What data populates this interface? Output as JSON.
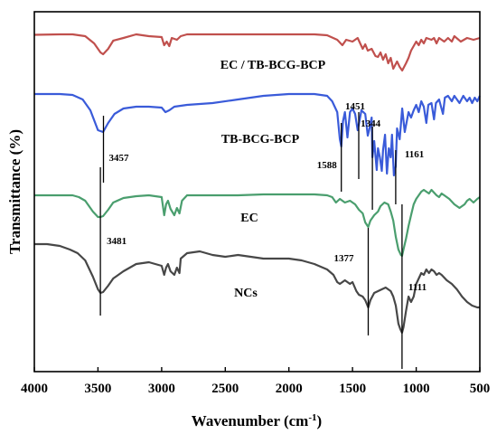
{
  "chart_data": {
    "type": "line",
    "title": "",
    "xlabel": "Wavenumber (cm",
    "xlabel_sup": "-1",
    "xlabel_close": ")",
    "ylabel": "Transmittance (%)",
    "xlim": [
      4000,
      500
    ],
    "x_reversed": true,
    "y_ticks_shown": false,
    "grid": false,
    "legend": "none (series labelled inline)",
    "x_ticks": [
      "4000",
      "3500",
      "3000",
      "2500",
      "2000",
      "1500",
      "1000",
      "500"
    ],
    "series": [
      {
        "name": "EC / TB-BCG-BCP",
        "color": "#c0504d",
        "points": [
          [
            4000,
            0.5
          ],
          [
            3800,
            0
          ],
          [
            3700,
            0
          ],
          [
            3600,
            2
          ],
          [
            3530,
            10
          ],
          [
            3480,
            20
          ],
          [
            3460,
            22
          ],
          [
            3420,
            16
          ],
          [
            3380,
            7
          ],
          [
            3300,
            4
          ],
          [
            3200,
            0
          ],
          [
            3100,
            2
          ],
          [
            3000,
            3
          ],
          [
            2980,
            12
          ],
          [
            2960,
            8
          ],
          [
            2940,
            13
          ],
          [
            2920,
            4
          ],
          [
            2880,
            6
          ],
          [
            2850,
            2
          ],
          [
            2800,
            0
          ],
          [
            2600,
            0
          ],
          [
            2400,
            0
          ],
          [
            2200,
            0
          ],
          [
            2000,
            0
          ],
          [
            1800,
            0
          ],
          [
            1700,
            1
          ],
          [
            1620,
            6
          ],
          [
            1580,
            12
          ],
          [
            1550,
            6
          ],
          [
            1500,
            8
          ],
          [
            1460,
            4
          ],
          [
            1420,
            16
          ],
          [
            1400,
            11
          ],
          [
            1380,
            18
          ],
          [
            1350,
            16
          ],
          [
            1320,
            24
          ],
          [
            1300,
            25
          ],
          [
            1280,
            20
          ],
          [
            1260,
            28
          ],
          [
            1240,
            22
          ],
          [
            1220,
            32
          ],
          [
            1200,
            26
          ],
          [
            1180,
            38
          ],
          [
            1150,
            30
          ],
          [
            1130,
            36
          ],
          [
            1110,
            40
          ],
          [
            1080,
            32
          ],
          [
            1060,
            26
          ],
          [
            1040,
            18
          ],
          [
            1000,
            8
          ],
          [
            980,
            12
          ],
          [
            960,
            6
          ],
          [
            940,
            10
          ],
          [
            920,
            4
          ],
          [
            880,
            6
          ],
          [
            860,
            4
          ],
          [
            840,
            10
          ],
          [
            820,
            4
          ],
          [
            780,
            8
          ],
          [
            750,
            4
          ],
          [
            720,
            8
          ],
          [
            700,
            2
          ],
          [
            650,
            8
          ],
          [
            600,
            4
          ],
          [
            550,
            6
          ],
          [
            500,
            4
          ]
        ]
      },
      {
        "name": "TB-BCG-BCP",
        "color": "#3a5bd9",
        "points": [
          [
            4000,
            0
          ],
          [
            3800,
            0
          ],
          [
            3700,
            1
          ],
          [
            3620,
            6
          ],
          [
            3560,
            18
          ],
          [
            3500,
            40
          ],
          [
            3460,
            42
          ],
          [
            3420,
            32
          ],
          [
            3370,
            22
          ],
          [
            3300,
            16
          ],
          [
            3200,
            14
          ],
          [
            3100,
            14
          ],
          [
            3000,
            15
          ],
          [
            2970,
            20
          ],
          [
            2940,
            18
          ],
          [
            2900,
            14
          ],
          [
            2800,
            12
          ],
          [
            2600,
            10
          ],
          [
            2400,
            6
          ],
          [
            2200,
            2
          ],
          [
            2000,
            0
          ],
          [
            1800,
            0
          ],
          [
            1700,
            2
          ],
          [
            1660,
            8
          ],
          [
            1620,
            20
          ],
          [
            1600,
            50
          ],
          [
            1588,
            58
          ],
          [
            1575,
            30
          ],
          [
            1560,
            20
          ],
          [
            1540,
            48
          ],
          [
            1520,
            20
          ],
          [
            1500,
            16
          ],
          [
            1480,
            22
          ],
          [
            1460,
            40
          ],
          [
            1451,
            34
          ],
          [
            1430,
            18
          ],
          [
            1400,
            22
          ],
          [
            1380,
            46
          ],
          [
            1370,
            40
          ],
          [
            1350,
            26
          ],
          [
            1344,
            70
          ],
          [
            1330,
            52
          ],
          [
            1310,
            84
          ],
          [
            1300,
            60
          ],
          [
            1285,
            70
          ],
          [
            1270,
            85
          ],
          [
            1260,
            62
          ],
          [
            1245,
            45
          ],
          [
            1230,
            88
          ],
          [
            1215,
            60
          ],
          [
            1200,
            70
          ],
          [
            1190,
            45
          ],
          [
            1175,
            90
          ],
          [
            1161,
            80
          ],
          [
            1150,
            38
          ],
          [
            1130,
            50
          ],
          [
            1110,
            16
          ],
          [
            1090,
            42
          ],
          [
            1060,
            20
          ],
          [
            1040,
            26
          ],
          [
            1020,
            18
          ],
          [
            1000,
            12
          ],
          [
            980,
            20
          ],
          [
            960,
            8
          ],
          [
            940,
            14
          ],
          [
            920,
            32
          ],
          [
            905,
            12
          ],
          [
            880,
            10
          ],
          [
            860,
            28
          ],
          [
            845,
            10
          ],
          [
            820,
            6
          ],
          [
            790,
            22
          ],
          [
            775,
            4
          ],
          [
            750,
            2
          ],
          [
            720,
            8
          ],
          [
            700,
            2
          ],
          [
            660,
            10
          ],
          [
            630,
            2
          ],
          [
            600,
            8
          ],
          [
            580,
            4
          ],
          [
            560,
            10
          ],
          [
            540,
            4
          ],
          [
            520,
            8
          ],
          [
            500,
            2
          ]
        ]
      },
      {
        "name": "EC",
        "color": "#4a9e6e",
        "points": [
          [
            4000,
            0
          ],
          [
            3800,
            0
          ],
          [
            3700,
            0
          ],
          [
            3650,
            2
          ],
          [
            3600,
            6
          ],
          [
            3540,
            18
          ],
          [
            3500,
            24
          ],
          [
            3480,
            24
          ],
          [
            3460,
            23
          ],
          [
            3420,
            16
          ],
          [
            3380,
            8
          ],
          [
            3300,
            3
          ],
          [
            3200,
            1
          ],
          [
            3100,
            0
          ],
          [
            3000,
            2
          ],
          [
            2980,
            22
          ],
          [
            2965,
            10
          ],
          [
            2950,
            6
          ],
          [
            2930,
            15
          ],
          [
            2900,
            22
          ],
          [
            2880,
            14
          ],
          [
            2860,
            20
          ],
          [
            2840,
            6
          ],
          [
            2800,
            0
          ],
          [
            2600,
            0
          ],
          [
            2400,
            0
          ],
          [
            2200,
            -1
          ],
          [
            2000,
            -1
          ],
          [
            1800,
            -1
          ],
          [
            1700,
            0
          ],
          [
            1660,
            2
          ],
          [
            1630,
            8
          ],
          [
            1600,
            4
          ],
          [
            1560,
            8
          ],
          [
            1520,
            6
          ],
          [
            1480,
            10
          ],
          [
            1450,
            16
          ],
          [
            1420,
            20
          ],
          [
            1400,
            30
          ],
          [
            1377,
            35
          ],
          [
            1360,
            28
          ],
          [
            1330,
            22
          ],
          [
            1300,
            18
          ],
          [
            1280,
            12
          ],
          [
            1250,
            8
          ],
          [
            1220,
            10
          ],
          [
            1200,
            18
          ],
          [
            1180,
            28
          ],
          [
            1160,
            46
          ],
          [
            1140,
            60
          ],
          [
            1120,
            66
          ],
          [
            1111,
            67
          ],
          [
            1100,
            60
          ],
          [
            1080,
            48
          ],
          [
            1060,
            34
          ],
          [
            1040,
            22
          ],
          [
            1020,
            10
          ],
          [
            1000,
            4
          ],
          [
            980,
            0
          ],
          [
            960,
            -4
          ],
          [
            940,
            -6
          ],
          [
            920,
            -4
          ],
          [
            900,
            -2
          ],
          [
            880,
            -6
          ],
          [
            860,
            -3
          ],
          [
            840,
            0
          ],
          [
            820,
            2
          ],
          [
            800,
            -2
          ],
          [
            780,
            0
          ],
          [
            760,
            2
          ],
          [
            740,
            4
          ],
          [
            700,
            10
          ],
          [
            660,
            14
          ],
          [
            620,
            10
          ],
          [
            600,
            6
          ],
          [
            580,
            4
          ],
          [
            550,
            8
          ],
          [
            520,
            4
          ],
          [
            500,
            2
          ]
        ]
      },
      {
        "name": "NCs",
        "color": "#474747",
        "points": [
          [
            4000,
            4
          ],
          [
            3900,
            4
          ],
          [
            3800,
            6
          ],
          [
            3720,
            10
          ],
          [
            3660,
            14
          ],
          [
            3600,
            22
          ],
          [
            3540,
            40
          ],
          [
            3500,
            54
          ],
          [
            3480,
            58
          ],
          [
            3460,
            57
          ],
          [
            3420,
            50
          ],
          [
            3380,
            42
          ],
          [
            3300,
            34
          ],
          [
            3200,
            26
          ],
          [
            3100,
            24
          ],
          [
            3050,
            26
          ],
          [
            3000,
            28
          ],
          [
            2980,
            38
          ],
          [
            2965,
            30
          ],
          [
            2950,
            26
          ],
          [
            2930,
            34
          ],
          [
            2900,
            38
          ],
          [
            2880,
            30
          ],
          [
            2860,
            36
          ],
          [
            2850,
            20
          ],
          [
            2800,
            14
          ],
          [
            2700,
            12
          ],
          [
            2600,
            16
          ],
          [
            2500,
            18
          ],
          [
            2400,
            16
          ],
          [
            2300,
            18
          ],
          [
            2200,
            20
          ],
          [
            2100,
            20
          ],
          [
            2000,
            20
          ],
          [
            1900,
            22
          ],
          [
            1800,
            26
          ],
          [
            1700,
            32
          ],
          [
            1650,
            38
          ],
          [
            1620,
            46
          ],
          [
            1600,
            48
          ],
          [
            1560,
            44
          ],
          [
            1520,
            48
          ],
          [
            1500,
            46
          ],
          [
            1470,
            56
          ],
          [
            1450,
            60
          ],
          [
            1420,
            62
          ],
          [
            1400,
            66
          ],
          [
            1377,
            74
          ],
          [
            1360,
            66
          ],
          [
            1330,
            58
          ],
          [
            1300,
            56
          ],
          [
            1270,
            54
          ],
          [
            1240,
            52
          ],
          [
            1200,
            56
          ],
          [
            1180,
            62
          ],
          [
            1160,
            72
          ],
          [
            1140,
            92
          ],
          [
            1125,
            98
          ],
          [
            1111,
            102
          ],
          [
            1100,
            96
          ],
          [
            1080,
            78
          ],
          [
            1060,
            62
          ],
          [
            1040,
            68
          ],
          [
            1020,
            62
          ],
          [
            1000,
            48
          ],
          [
            980,
            42
          ],
          [
            960,
            36
          ],
          [
            940,
            38
          ],
          [
            920,
            32
          ],
          [
            900,
            36
          ],
          [
            880,
            32
          ],
          [
            860,
            34
          ],
          [
            840,
            38
          ],
          [
            820,
            36
          ],
          [
            800,
            38
          ],
          [
            760,
            44
          ],
          [
            720,
            48
          ],
          [
            680,
            54
          ],
          [
            640,
            62
          ],
          [
            600,
            68
          ],
          [
            560,
            72
          ],
          [
            520,
            74
          ],
          [
            500,
            74
          ]
        ]
      }
    ],
    "peak_labels": [
      {
        "text": "3457",
        "x": 3457,
        "series": "TB-BCG-BCP"
      },
      {
        "text": "1588",
        "x": 1588,
        "series": "TB-BCG-BCP"
      },
      {
        "text": "1451",
        "x": 1451,
        "series": "TB-BCG-BCP"
      },
      {
        "text": "1344",
        "x": 1344,
        "series": "TB-BCG-BCP"
      },
      {
        "text": "1161",
        "x": 1161,
        "series": "TB-BCG-BCP"
      },
      {
        "text": "3481",
        "x": 3481,
        "series": "EC"
      },
      {
        "text": "1377",
        "x": 1377,
        "series": "EC"
      },
      {
        "text": "1111",
        "x": 1111,
        "series": "EC"
      }
    ]
  }
}
